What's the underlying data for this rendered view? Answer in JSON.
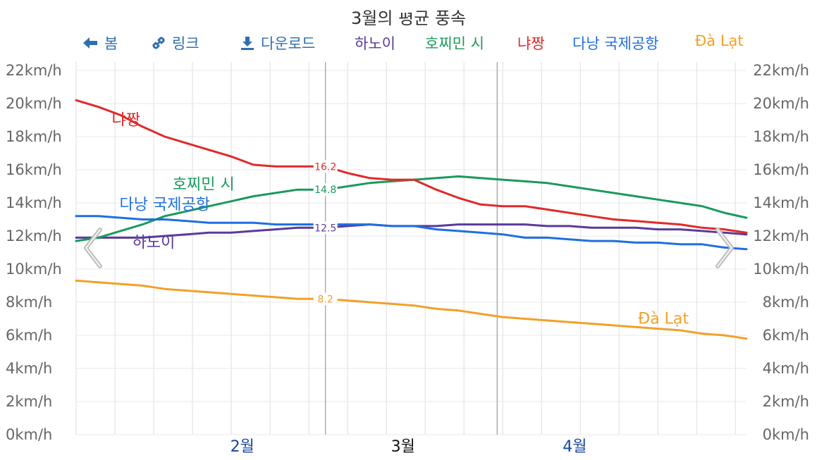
{
  "title": "3월의 평균 풍속",
  "toolbar": {
    "back_label": "봄",
    "link_label": "링크",
    "download_label": "다운로드"
  },
  "legend": [
    {
      "label": "하노이",
      "color": "#5b3a9b"
    },
    {
      "label": "호찌민 시",
      "color": "#1a9a5a"
    },
    {
      "label": "냐짱",
      "color": "#e02a2a"
    },
    {
      "label": "다낭 국제공항",
      "color": "#1f6fe0"
    },
    {
      "label": "Đà Lạt",
      "color": "#f2a02a"
    }
  ],
  "icons": [
    "arrow-left-icon",
    "link-icon",
    "download-icon",
    "chevron-left-icon",
    "chevron-right-icon"
  ],
  "chart_data": {
    "type": "line",
    "title": "3월의 평균 풍속",
    "x": [
      "1/16",
      "1/20",
      "1/24",
      "1/28",
      "2/1",
      "2/5",
      "2/9",
      "2/13",
      "2/17",
      "2/21",
      "2/25",
      "3/1",
      "3/5",
      "3/9",
      "3/13",
      "3/17",
      "3/21",
      "3/25",
      "3/29",
      "4/2",
      "4/6",
      "4/10",
      "4/14",
      "4/18",
      "4/22",
      "4/26",
      "4/30",
      "5/4",
      "5/8",
      "5/12",
      "5/16"
    ],
    "xmin": "1/16",
    "xmax": "5/16",
    "month_labels": [
      {
        "label": "2월",
        "date": "2/15"
      },
      {
        "label": "3월",
        "date": "3/15",
        "current": true
      },
      {
        "label": "4월",
        "date": "4/15"
      }
    ],
    "month_separators": [
      "3/1",
      "4/1"
    ],
    "ylim": [
      0,
      22
    ],
    "y_ticks": [
      "0km/h",
      "2km/h",
      "4km/h",
      "6km/h",
      "8km/h",
      "10km/h",
      "12km/h",
      "14km/h",
      "16km/h",
      "18km/h",
      "20km/h",
      "22km/h"
    ],
    "unit": "km/h",
    "grid": true,
    "legend_position": "top",
    "series": [
      {
        "name": "하노이",
        "color": "#5b3a9b",
        "values": [
          11.9,
          11.9,
          11.9,
          11.9,
          12.0,
          12.1,
          12.2,
          12.2,
          12.3,
          12.4,
          12.5,
          12.5,
          12.6,
          12.7,
          12.6,
          12.6,
          12.6,
          12.7,
          12.7,
          12.7,
          12.7,
          12.6,
          12.6,
          12.5,
          12.5,
          12.5,
          12.4,
          12.4,
          12.3,
          12.2,
          12.1
        ],
        "point_labels": [
          {
            "date": "3/1",
            "text": "12.5"
          },
          {
            "date": "3/15",
            "text": "12.6"
          },
          {
            "date": "4/1",
            "text": "12.7"
          }
        ]
      },
      {
        "name": "호찌민 시",
        "color": "#1a9a5a",
        "values": [
          11.7,
          11.9,
          12.3,
          12.7,
          13.2,
          13.5,
          13.8,
          14.1,
          14.4,
          14.6,
          14.8,
          14.8,
          15.0,
          15.2,
          15.3,
          15.4,
          15.5,
          15.6,
          15.5,
          15.4,
          15.3,
          15.2,
          15.0,
          14.8,
          14.6,
          14.4,
          14.2,
          14.0,
          13.8,
          13.4,
          13.1
        ],
        "point_labels": [
          {
            "date": "3/1",
            "text": "14.8"
          },
          {
            "date": "3/15",
            "text": "15.4"
          },
          {
            "date": "4/1",
            "text": "15.3"
          }
        ]
      },
      {
        "name": "냐짱",
        "color": "#e02a2a",
        "values": [
          20.2,
          19.8,
          19.3,
          18.6,
          18.0,
          17.6,
          17.2,
          16.8,
          16.3,
          16.2,
          16.2,
          16.2,
          15.8,
          15.5,
          15.4,
          15.4,
          14.8,
          14.3,
          13.9,
          13.8,
          13.8,
          13.6,
          13.4,
          13.2,
          13.0,
          12.9,
          12.8,
          12.7,
          12.5,
          12.4,
          12.2
        ],
        "point_labels": [
          {
            "date": "3/1",
            "text": "16.2"
          },
          {
            "date": "3/15",
            "text": "15.4"
          },
          {
            "date": "4/1",
            "text": "13.8"
          }
        ]
      },
      {
        "name": "다낭 국제공항",
        "color": "#1f6fe0",
        "values": [
          13.2,
          13.2,
          13.1,
          13.0,
          13.0,
          12.9,
          12.8,
          12.8,
          12.8,
          12.7,
          12.7,
          12.7,
          12.7,
          12.7,
          12.6,
          12.6,
          12.4,
          12.3,
          12.2,
          12.1,
          11.9,
          11.9,
          11.8,
          11.7,
          11.7,
          11.6,
          11.6,
          11.5,
          11.5,
          11.3,
          11.2
        ],
        "point_labels": []
      },
      {
        "name": "Đà Lạt",
        "color": "#f2a02a",
        "values": [
          9.3,
          9.2,
          9.1,
          9.0,
          8.8,
          8.7,
          8.6,
          8.5,
          8.4,
          8.3,
          8.2,
          8.2,
          8.1,
          8.0,
          7.9,
          7.8,
          7.6,
          7.5,
          7.3,
          7.1,
          7.0,
          6.9,
          6.8,
          6.7,
          6.6,
          6.5,
          6.4,
          6.3,
          6.1,
          6.0,
          5.8
        ],
        "point_labels": [
          {
            "date": "3/1",
            "text": "8.2"
          },
          {
            "date": "3/15",
            "text": "7.8"
          },
          {
            "date": "4/1",
            "text": "7.0"
          }
        ]
      }
    ],
    "series_annotations": [
      {
        "series": "냐짱",
        "text": "냐짱",
        "date": "1/25",
        "value": 18.7
      },
      {
        "series": "호찌민 시",
        "text": "호찌민 시",
        "date": "2/8",
        "value": 14.8
      },
      {
        "series": "다낭 국제공항",
        "text": "다낭 국제공항",
        "date": "2/1",
        "value": 13.6
      },
      {
        "series": "하노이",
        "text": "하노이",
        "date": "1/30",
        "value": 11.3
      },
      {
        "series": "Đà Lạt",
        "text": "Đà Lạt",
        "date": "5/1",
        "value": 6.7
      }
    ]
  }
}
